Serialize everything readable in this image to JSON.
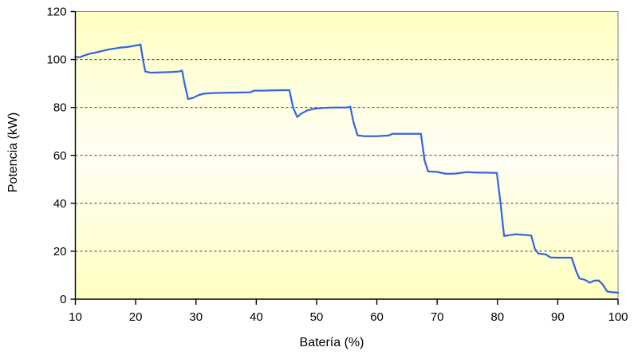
{
  "chart_data": {
    "type": "line",
    "title": "",
    "xlabel": "Batería (%)",
    "ylabel": "Potencia (kW)",
    "xlim": [
      10,
      100
    ],
    "ylim": [
      0,
      120
    ],
    "x_ticks": [
      10,
      20,
      30,
      40,
      50,
      60,
      70,
      80,
      90,
      100
    ],
    "y_ticks": [
      0,
      20,
      40,
      60,
      80,
      100,
      120
    ],
    "gridlines": {
      "horizontal_at": [
        20,
        40,
        60,
        80,
        100
      ],
      "style": "dashed",
      "color": "#3a3a3a"
    },
    "legend": "none",
    "series": [
      {
        "name": "Potencia",
        "color": "#3566e2",
        "x": [
          10,
          10.8,
          11.5,
          12.5,
          13.5,
          14.5,
          15.5,
          16.5,
          17.5,
          18.5,
          19.5,
          20.3,
          20.8,
          21.2,
          21.6,
          22.5,
          24,
          26,
          27.2,
          27.7,
          28.1,
          28.7,
          29.5,
          30.5,
          31.5,
          33,
          35,
          37,
          39,
          39.6,
          41,
          43,
          45,
          45.5,
          46.1,
          46.8,
          47.5,
          48.5,
          49.5,
          51,
          53,
          55,
          55.6,
          56.1,
          56.8,
          58,
          60,
          62,
          62.6,
          64,
          66,
          67.3,
          67.9,
          68.5,
          70,
          71.5,
          73,
          74.5,
          75,
          76.5,
          78,
          79.9,
          80.5,
          81.1,
          82,
          83,
          84.5,
          85.6,
          86.2,
          86.8,
          88,
          88.8,
          90,
          91.5,
          92.3,
          93,
          93.6,
          94.5,
          95.3,
          96,
          96.8,
          97.5,
          98.2,
          99,
          100
        ],
        "y": [
          101,
          101,
          101.7,
          102.5,
          103,
          103.6,
          104.2,
          104.6,
          105,
          105.2,
          105.6,
          106,
          106.3,
          100,
          95,
          94.5,
          94.6,
          94.8,
          95,
          95.4,
          90,
          83.5,
          84,
          85.2,
          85.8,
          86,
          86.1,
          86.2,
          86.3,
          87,
          87,
          87.1,
          87.2,
          87.2,
          80,
          76,
          77.5,
          78.8,
          79.4,
          79.8,
          80,
          80,
          80.3,
          74,
          68.3,
          68,
          68,
          68.3,
          69,
          69,
          69,
          69,
          58,
          53.3,
          53.1,
          52.3,
          52.4,
          52.9,
          53,
          52.8,
          52.8,
          52.7,
          40,
          26.4,
          26.7,
          27.1,
          26.8,
          26.6,
          21,
          19,
          18.7,
          17.4,
          17.3,
          17.3,
          17.3,
          12,
          8.6,
          8.1,
          6.9,
          7.7,
          7.8,
          6,
          3.2,
          2.9,
          2.7
        ]
      }
    ],
    "colors": {
      "line": "#3566e2",
      "plot_bg_edge": "#ffffc2",
      "plot_bg_center": "#fffef4",
      "plot_border": "#808080",
      "axis": "#000000",
      "gridline": "#3a3a3a",
      "outer_bg": "#ffffff"
    },
    "layout": {
      "plot_left": 94.5,
      "plot_right": 775,
      "plot_top": 14.5,
      "plot_bottom": 375
    }
  }
}
